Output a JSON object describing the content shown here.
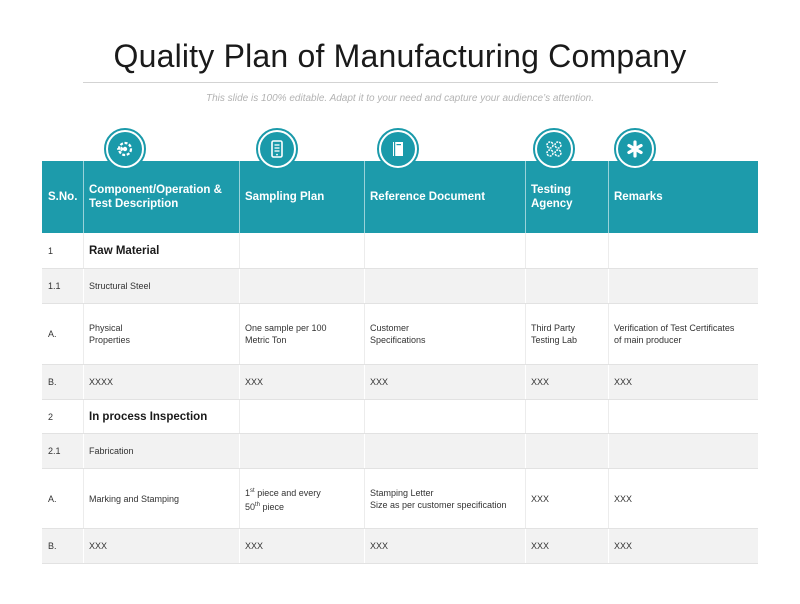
{
  "title": "Quality Plan of Manufacturing Company",
  "subtitle": "This slide is 100% editable. Adapt it to your need and capture your audience’s attention.",
  "accent_color": "#1d9bab",
  "icons": [
    "gear-arrows-icon",
    "tablet-list-icon",
    "book-icon",
    "gears-cluster-icon",
    "asterisk-icon"
  ],
  "headers": [
    "S.No.",
    "Component/Operation & Test Description",
    "Sampling Plan",
    "Reference Document",
    "Testing Agency",
    "Remarks"
  ],
  "rows": [
    {
      "sno": "1",
      "desc": "Raw Material",
      "plan": "",
      "ref": "",
      "agency": "",
      "remarks": ""
    },
    {
      "sno": "1.1",
      "desc": "Structural Steel",
      "plan": "",
      "ref": "",
      "agency": "",
      "remarks": ""
    },
    {
      "sno": "A.",
      "desc": "Physical\nProperties",
      "plan": "One sample per 100\nMetric Ton",
      "ref": "Customer\nSpecifications",
      "agency": "Third Party\nTesting Lab",
      "remarks": "Verification of Test Certificates\nof main producer"
    },
    {
      "sno": "B.",
      "desc": "XXXX",
      "plan": "XXX",
      "ref": "XXX",
      "agency": "XXX",
      "remarks": "XXX"
    },
    {
      "sno": "2",
      "desc": "In process Inspection",
      "plan": "",
      "ref": "",
      "agency": "",
      "remarks": ""
    },
    {
      "sno": "2.1",
      "desc": "Fabrication",
      "plan": "",
      "ref": "",
      "agency": "",
      "remarks": ""
    },
    {
      "sno": "A.",
      "desc": "Marking and Stamping",
      "plan": "1st piece and every\n50th piece",
      "ref": "Stamping Letter\nSize as per customer specification",
      "agency": "XXX",
      "remarks": "XXX"
    },
    {
      "sno": "B.",
      "desc": "XXX",
      "plan": "XXX",
      "ref": "XXX",
      "agency": "XXX",
      "remarks": "XXX"
    }
  ]
}
